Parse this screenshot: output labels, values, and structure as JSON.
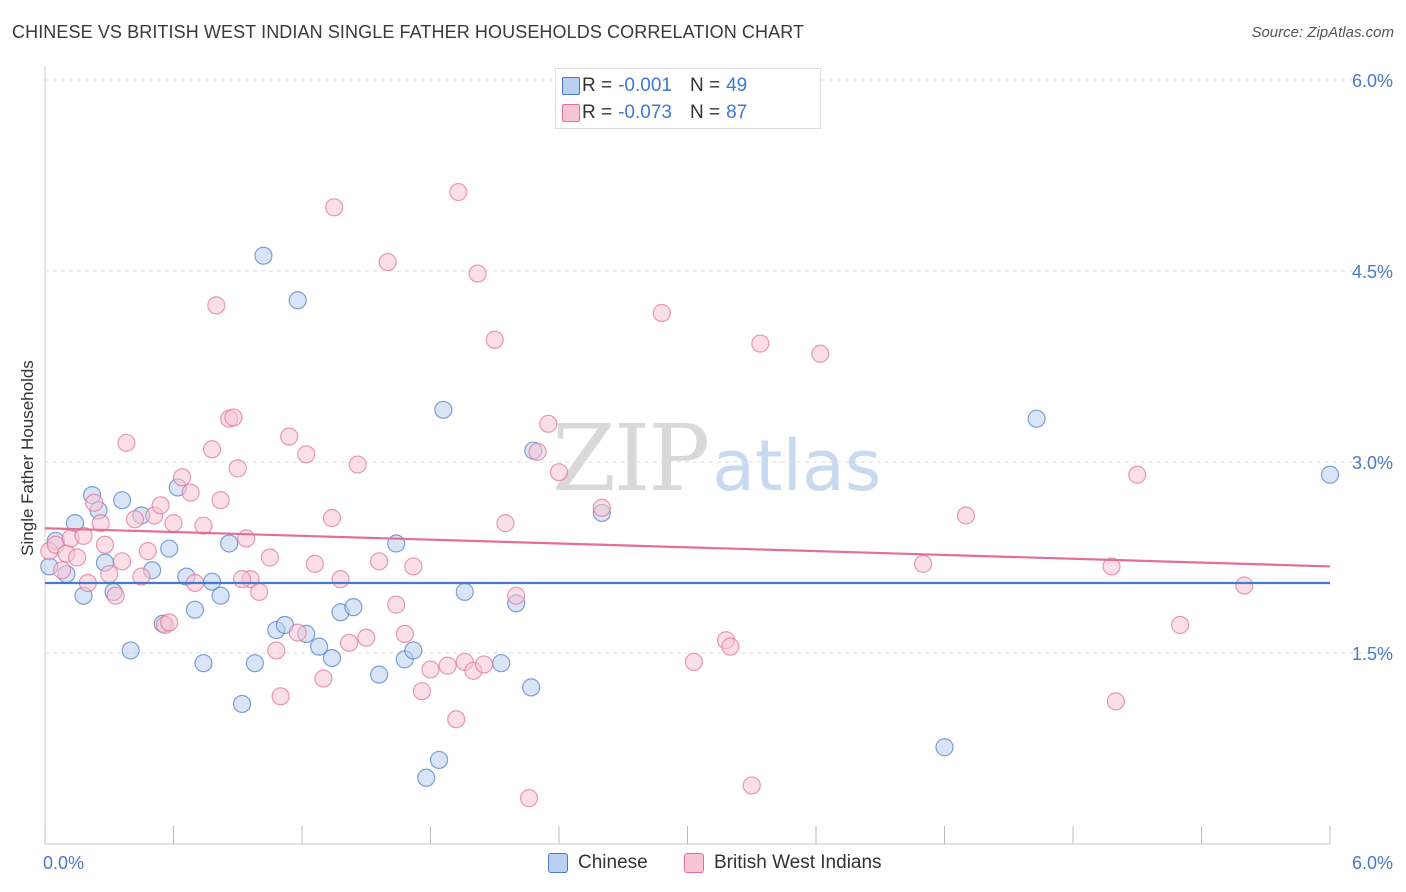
{
  "chart_data": {
    "type": "scatter",
    "title": "CHINESE VS BRITISH WEST INDIAN SINGLE FATHER HOUSEHOLDS CORRELATION CHART",
    "source": "Source: ZipAtlas.com",
    "ylabel": "Single Father Households",
    "xlim": [
      0,
      6.0
    ],
    "ylim": [
      0,
      6.0
    ],
    "y_ticks": [
      {
        "value": 1.5,
        "label": "1.5%"
      },
      {
        "value": 3.0,
        "label": "3.0%"
      },
      {
        "value": 4.5,
        "label": "4.5%"
      },
      {
        "value": 6.0,
        "label": "6.0%"
      }
    ],
    "x_tick_labels": {
      "min": "0.0%",
      "max": "6.0%"
    },
    "grid": true,
    "legend_position": "top-center",
    "series": [
      {
        "name": "Chinese",
        "color": "#4a7ac7",
        "fill": "#b9d0f0",
        "stats": {
          "r_label": "R =",
          "r": "-0.001",
          "n_label": "N =",
          "n": "49"
        },
        "trend": {
          "x0": 0.0,
          "y0": 2.05,
          "x1": 6.0,
          "y1": 2.05
        },
        "points": [
          [
            0.02,
            2.18
          ],
          [
            0.05,
            2.38
          ],
          [
            0.1,
            2.12
          ],
          [
            0.14,
            2.52
          ],
          [
            0.18,
            1.95
          ],
          [
            0.22,
            2.74
          ],
          [
            0.25,
            2.62
          ],
          [
            0.28,
            2.21
          ],
          [
            0.32,
            1.98
          ],
          [
            0.36,
            2.7
          ],
          [
            0.4,
            1.52
          ],
          [
            0.45,
            2.58
          ],
          [
            0.5,
            2.15
          ],
          [
            0.55,
            1.73
          ],
          [
            0.58,
            2.32
          ],
          [
            0.62,
            2.8
          ],
          [
            0.66,
            2.1
          ],
          [
            0.7,
            1.84
          ],
          [
            0.74,
            1.42
          ],
          [
            0.78,
            2.06
          ],
          [
            0.82,
            1.95
          ],
          [
            0.86,
            2.36
          ],
          [
            0.92,
            1.1
          ],
          [
            0.98,
            1.42
          ],
          [
            1.02,
            4.62
          ],
          [
            1.08,
            1.68
          ],
          [
            1.12,
            1.72
          ],
          [
            1.18,
            4.27
          ],
          [
            1.22,
            1.65
          ],
          [
            1.28,
            1.55
          ],
          [
            1.34,
            1.46
          ],
          [
            1.38,
            1.82
          ],
          [
            1.44,
            1.86
          ],
          [
            1.56,
            1.33
          ],
          [
            1.64,
            2.36
          ],
          [
            1.68,
            1.45
          ],
          [
            1.72,
            1.52
          ],
          [
            1.78,
            0.52
          ],
          [
            1.84,
            0.66
          ],
          [
            1.86,
            3.41
          ],
          [
            1.96,
            1.98
          ],
          [
            2.13,
            1.42
          ],
          [
            2.2,
            1.89
          ],
          [
            2.27,
            1.23
          ],
          [
            2.28,
            3.09
          ],
          [
            2.6,
            2.6
          ],
          [
            4.2,
            0.76
          ],
          [
            4.63,
            3.34
          ],
          [
            6.0,
            2.9
          ]
        ]
      },
      {
        "name": "British West Indians",
        "color": "#e36f96",
        "fill": "#f7c4d4",
        "stats": {
          "r_label": "R =",
          "r": "-0.073",
          "n_label": "N =",
          "n": "87"
        },
        "trend": {
          "x0": 0.0,
          "y0": 2.48,
          "x1": 6.0,
          "y1": 2.18
        },
        "points": [
          [
            0.02,
            2.3
          ],
          [
            0.05,
            2.35
          ],
          [
            0.08,
            2.15
          ],
          [
            0.1,
            2.28
          ],
          [
            0.12,
            2.4
          ],
          [
            0.15,
            2.25
          ],
          [
            0.18,
            2.42
          ],
          [
            0.2,
            2.05
          ],
          [
            0.23,
            2.68
          ],
          [
            0.26,
            2.52
          ],
          [
            0.28,
            2.35
          ],
          [
            0.3,
            2.12
          ],
          [
            0.33,
            1.95
          ],
          [
            0.36,
            2.22
          ],
          [
            0.38,
            3.15
          ],
          [
            0.42,
            2.55
          ],
          [
            0.45,
            2.1
          ],
          [
            0.48,
            2.3
          ],
          [
            0.51,
            2.58
          ],
          [
            0.54,
            2.66
          ],
          [
            0.56,
            1.72
          ],
          [
            0.6,
            2.52
          ],
          [
            0.64,
            2.88
          ],
          [
            0.68,
            2.76
          ],
          [
            0.7,
            2.05
          ],
          [
            0.74,
            2.5
          ],
          [
            0.78,
            3.1
          ],
          [
            0.82,
            2.7
          ],
          [
            0.86,
            3.34
          ],
          [
            0.9,
            2.95
          ],
          [
            0.94,
            2.4
          ],
          [
            0.96,
            2.08
          ],
          [
            1.0,
            1.98
          ],
          [
            1.05,
            2.25
          ],
          [
            1.08,
            1.52
          ],
          [
            1.1,
            1.16
          ],
          [
            1.14,
            3.2
          ],
          [
            1.18,
            1.66
          ],
          [
            1.22,
            3.06
          ],
          [
            1.26,
            2.2
          ],
          [
            1.3,
            1.3
          ],
          [
            1.34,
            2.56
          ],
          [
            1.38,
            2.08
          ],
          [
            1.42,
            1.58
          ],
          [
            1.46,
            2.98
          ],
          [
            1.5,
            1.62
          ],
          [
            1.56,
            2.22
          ],
          [
            1.6,
            4.57
          ],
          [
            1.64,
            1.88
          ],
          [
            1.68,
            1.65
          ],
          [
            1.72,
            2.18
          ],
          [
            1.76,
            1.2
          ],
          [
            1.8,
            1.37
          ],
          [
            1.88,
            1.4
          ],
          [
            1.92,
            0.98
          ],
          [
            1.96,
            1.43
          ],
          [
            2.0,
            1.36
          ],
          [
            2.05,
            1.41
          ],
          [
            2.1,
            3.96
          ],
          [
            2.15,
            2.52
          ],
          [
            2.2,
            1.95
          ],
          [
            2.26,
            0.36
          ],
          [
            2.3,
            3.08
          ],
          [
            2.35,
            3.3
          ],
          [
            2.4,
            2.92
          ],
          [
            2.6,
            2.64
          ],
          [
            3.03,
            1.43
          ],
          [
            3.18,
            1.6
          ],
          [
            3.2,
            1.55
          ],
          [
            3.3,
            0.46
          ],
          [
            3.62,
            3.85
          ],
          [
            4.1,
            2.2
          ],
          [
            4.3,
            2.58
          ],
          [
            5.0,
            1.12
          ],
          [
            5.1,
            2.9
          ],
          [
            5.3,
            1.72
          ],
          [
            5.6,
            2.03
          ],
          [
            1.35,
            5.0
          ],
          [
            1.93,
            5.12
          ],
          [
            0.8,
            4.23
          ],
          [
            2.02,
            4.48
          ],
          [
            2.88,
            4.17
          ],
          [
            3.34,
            3.93
          ],
          [
            0.88,
            3.35
          ],
          [
            0.92,
            2.08
          ],
          [
            4.98,
            2.18
          ],
          [
            0.58,
            1.74
          ]
        ]
      }
    ]
  }
}
